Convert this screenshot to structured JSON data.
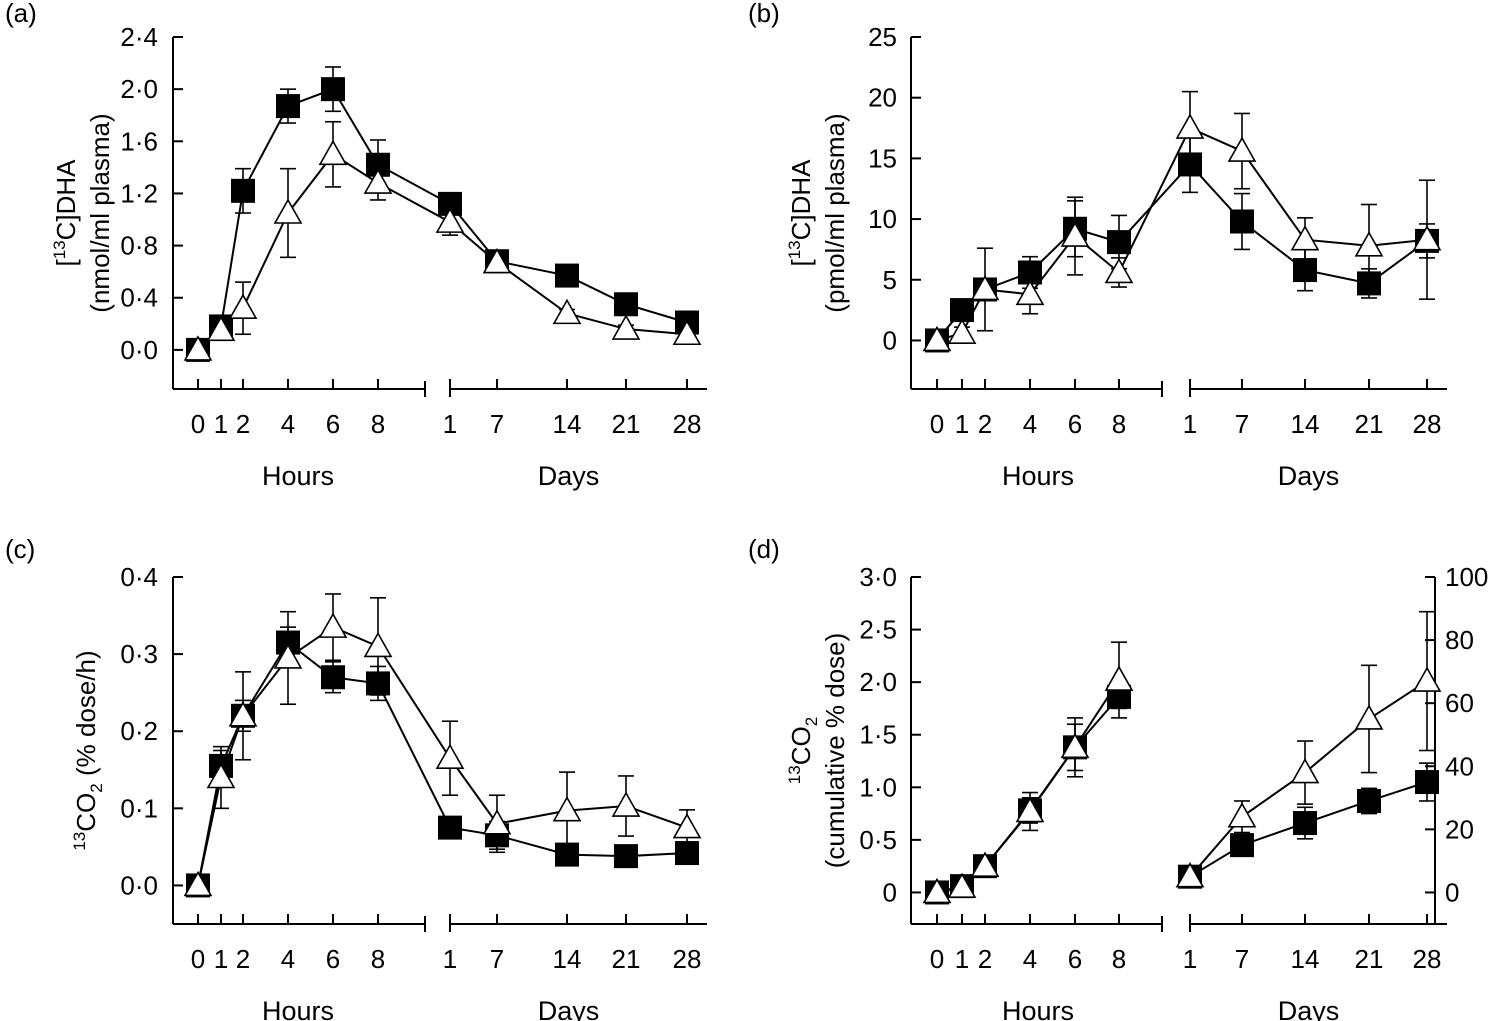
{
  "series_names": [
    "filled squares",
    "open triangles"
  ],
  "colors": {
    "square": "#000000",
    "triangle_fill": "#ffffff",
    "line": "#000000"
  },
  "chart_data": [
    {
      "panel_label": "(a)",
      "type": "line",
      "ylabel": {
        "prefix": "[",
        "sup": "13",
        "main": "C]DHA",
        "unit": "(nmol/ml plasma)"
      },
      "y_ticks": [
        "0·0",
        "0·4",
        "0·8",
        "1·2",
        "1·6",
        "2·0",
        "2·4"
      ],
      "y_tick_values": [
        0,
        0.4,
        0.8,
        1.2,
        1.6,
        2.0,
        2.4
      ],
      "ylim": [
        -0.3,
        2.4
      ],
      "hours": {
        "label": "Hours",
        "ticks": [
          "0",
          "1",
          "2",
          "4",
          "6",
          "8"
        ],
        "values": [
          0,
          1,
          2,
          4,
          6,
          8
        ]
      },
      "days": {
        "label": "Days",
        "ticks": [
          "1",
          "7",
          "14",
          "21",
          "28"
        ],
        "values": [
          1,
          7,
          14,
          21,
          28
        ]
      },
      "series": [
        {
          "name": "filled squares",
          "marker": "square",
          "hours_values": [
            0.0,
            0.18,
            1.22,
            1.87,
            2.0,
            1.42
          ],
          "hours_err": [
            0.03,
            0.08,
            0.17,
            0.13,
            0.17,
            0.19
          ],
          "days_values": [
            1.12,
            0.68,
            0.57,
            0.35,
            0.21
          ],
          "days_err": [
            0.05,
            0.04,
            0.05,
            0.04,
            0.03
          ]
        },
        {
          "name": "open triangles",
          "marker": "triangle",
          "hours_values": [
            0.0,
            0.15,
            0.32,
            1.05,
            1.5,
            1.28
          ],
          "hours_err": [
            0.03,
            0.07,
            0.2,
            0.34,
            0.25,
            0.13
          ],
          "days_values": [
            0.98,
            0.67,
            0.28,
            0.16,
            0.12
          ],
          "days_err": [
            0.1,
            0.04,
            0.03,
            0.03,
            0.03
          ]
        }
      ],
      "link_hours_to_days": true
    },
    {
      "panel_label": "(b)",
      "type": "line",
      "ylabel": {
        "prefix": "[",
        "sup": "13",
        "main": "C]DHA",
        "unit": "(pmol/ml plasma)"
      },
      "y_ticks": [
        "0",
        "5",
        "10",
        "15",
        "20",
        "25"
      ],
      "y_tick_values": [
        0,
        5,
        10,
        15,
        20,
        25
      ],
      "ylim": [
        -4,
        25
      ],
      "hours": {
        "label": "Hours",
        "ticks": [
          "0",
          "1",
          "2",
          "4",
          "6",
          "8"
        ],
        "values": [
          0,
          1,
          2,
          4,
          6,
          8
        ]
      },
      "days": {
        "label": "Days",
        "ticks": [
          "1",
          "7",
          "14",
          "21",
          "28"
        ],
        "values": [
          1,
          7,
          14,
          21,
          28
        ]
      },
      "series": [
        {
          "name": "filled squares",
          "marker": "square",
          "hours_values": [
            0.0,
            2.5,
            4.2,
            5.6,
            9.2,
            8.1
          ],
          "hours_err": [
            0.3,
            0.6,
            0.9,
            1.3,
            2.3,
            2.2
          ],
          "days_values": [
            14.5,
            9.8,
            5.8,
            4.7,
            8.2
          ],
          "days_err": [
            2.3,
            2.3,
            1.7,
            1.2,
            1.4
          ]
        },
        {
          "name": "open triangles",
          "marker": "triangle",
          "hours_values": [
            0.0,
            0.6,
            4.2,
            3.8,
            8.6,
            5.6
          ],
          "hours_err": [
            0.3,
            0.5,
            3.4,
            1.6,
            3.2,
            1.2
          ],
          "days_values": [
            17.5,
            15.6,
            8.3,
            7.8,
            8.3
          ],
          "days_err": [
            3.0,
            3.1,
            1.8,
            3.4,
            4.9
          ]
        }
      ],
      "link_hours_to_days": true
    },
    {
      "panel_label": "(c)",
      "type": "line",
      "ylabel": {
        "sup": "13",
        "main": "CO",
        "sub": "2",
        "unit": " (% dose/h)"
      },
      "y_ticks": [
        "0·0",
        "0·1",
        "0·2",
        "0·3",
        "0·4"
      ],
      "y_tick_values": [
        0,
        0.1,
        0.2,
        0.3,
        0.4
      ],
      "ylim": [
        -0.05,
        0.4
      ],
      "hours": {
        "label": "Hours",
        "ticks": [
          "0",
          "1",
          "2",
          "4",
          "6",
          "8"
        ],
        "values": [
          0,
          1,
          2,
          4,
          6,
          8
        ]
      },
      "days": {
        "label": "Days",
        "ticks": [
          "1",
          "7",
          "14",
          "21",
          "28"
        ],
        "values": [
          1,
          7,
          14,
          21,
          28
        ]
      },
      "series": [
        {
          "name": "filled squares",
          "marker": "square",
          "hours_values": [
            0.0,
            0.155,
            0.22,
            0.315,
            0.27,
            0.262
          ],
          "hours_err": [
            0.004,
            0.02,
            0.02,
            0.02,
            0.02,
            0.022
          ],
          "days_values": [
            0.075,
            0.065,
            0.04,
            0.038,
            0.042
          ],
          "days_err": [
            0.004,
            0.018,
            0.004,
            0.004,
            0.004
          ]
        },
        {
          "name": "open triangles",
          "marker": "triangle",
          "hours_values": [
            0.0,
            0.14,
            0.22,
            0.295,
            0.335,
            0.31
          ],
          "hours_err": [
            0.004,
            0.04,
            0.057,
            0.06,
            0.043,
            0.063
          ],
          "days_values": [
            0.165,
            0.08,
            0.097,
            0.103,
            0.075
          ],
          "days_err": [
            0.048,
            0.037,
            0.05,
            0.039,
            0.023
          ]
        }
      ],
      "link_hours_to_days": true
    },
    {
      "panel_label": "(d)",
      "type": "line",
      "ylabel": {
        "sup": "13",
        "main": "CO",
        "sub": "2",
        "unit": "(cumulative % dose)"
      },
      "y_ticks": [
        "0",
        "0·5",
        "1·0",
        "1·5",
        "2·0",
        "2·5",
        "3·0"
      ],
      "y_tick_values": [
        0,
        0.5,
        1.0,
        1.5,
        2.0,
        2.5,
        3.0
      ],
      "ylim": [
        -0.3,
        3.0
      ],
      "y2_ticks": [
        "0",
        "20",
        "40",
        "60",
        "80",
        "100"
      ],
      "y2_tick_values": [
        0,
        20,
        40,
        60,
        80,
        100
      ],
      "y2lim": [
        -10,
        100
      ],
      "hours": {
        "label": "Hours",
        "ticks": [
          "0",
          "1",
          "2",
          "4",
          "6",
          "8"
        ],
        "values": [
          0,
          1,
          2,
          4,
          6,
          8
        ]
      },
      "days": {
        "label": "Days",
        "ticks": [
          "1",
          "7",
          "14",
          "21",
          "28"
        ],
        "values": [
          1,
          7,
          14,
          21,
          28
        ]
      },
      "series": [
        {
          "name": "filled squares",
          "marker": "square",
          "hours_values": [
            0.0,
            0.06,
            0.25,
            0.78,
            1.38,
            1.86
          ],
          "hours_err": [
            0.02,
            0.02,
            0.04,
            0.12,
            0.22,
            0.11
          ],
          "days_values": [
            5,
            15,
            22,
            29,
            35
          ],
          "days_err": [
            1,
            2,
            5,
            4,
            6
          ]
        },
        {
          "name": "open triangles",
          "marker": "triangle",
          "hours_values": [
            0.0,
            0.05,
            0.25,
            0.77,
            1.38,
            2.02
          ],
          "hours_err": [
            0.02,
            0.02,
            0.05,
            0.18,
            0.28,
            0.36
          ],
          "days_values": [
            5,
            24,
            38,
            55,
            67
          ],
          "days_err": [
            1,
            5,
            10,
            17,
            22
          ]
        }
      ],
      "link_hours_to_days": false
    }
  ]
}
